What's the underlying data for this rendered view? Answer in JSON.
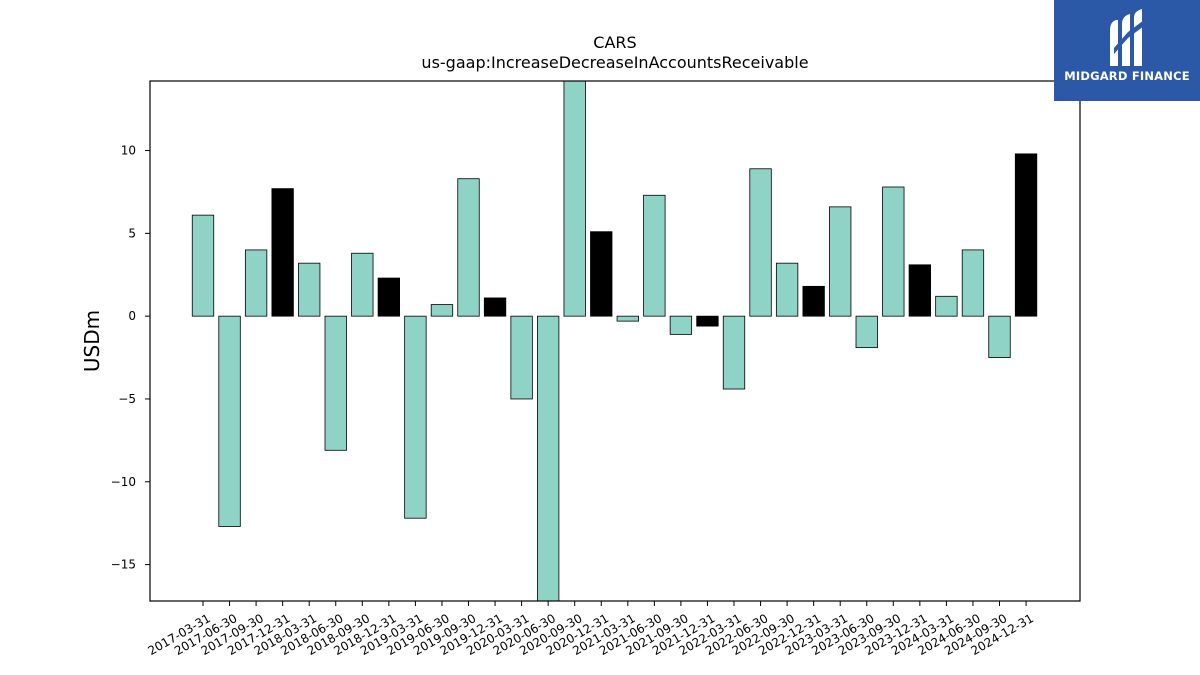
{
  "chart_data": {
    "type": "bar",
    "title": "CARS",
    "subtitle": "us-gaap:IncreaseDecreaseInAccountsReceivable",
    "xlabel": "",
    "ylabel": "USDm",
    "ylim": [
      -17.2,
      14.2
    ],
    "yticks": [
      -15,
      -10,
      -5,
      0,
      5,
      10
    ],
    "ytick_labels": [
      "−15",
      "−10",
      "−5",
      "0",
      "5",
      "10"
    ],
    "grid": false,
    "colors": {
      "quarter": "#8fd3c7",
      "year_end": "#000000",
      "edge": "#000000"
    },
    "categories": [
      "2017-03-31",
      "2017-06-30",
      "2017-09-30",
      "2017-12-31",
      "2018-03-31",
      "2018-06-30",
      "2018-09-30",
      "2018-12-31",
      "2019-03-31",
      "2019-06-30",
      "2019-09-30",
      "2019-12-31",
      "2020-03-31",
      "2020-06-30",
      "2020-09-30",
      "2020-12-31",
      "2021-03-31",
      "2021-06-30",
      "2021-09-30",
      "2021-12-31",
      "2022-03-31",
      "2022-06-30",
      "2022-09-30",
      "2022-12-31",
      "2023-03-31",
      "2023-06-30",
      "2023-09-30",
      "2023-12-31",
      "2024-03-31",
      "2024-06-30",
      "2024-09-30",
      "2024-12-31"
    ],
    "values": [
      6.1,
      -12.7,
      4.0,
      7.7,
      3.2,
      -8.1,
      3.8,
      2.3,
      -12.2,
      0.7,
      8.3,
      1.1,
      -5.0,
      -17.2,
      14.2,
      5.1,
      -0.3,
      7.3,
      -1.1,
      -0.6,
      -4.4,
      8.9,
      3.2,
      1.8,
      6.6,
      -1.9,
      7.8,
      3.1,
      1.2,
      4.0,
      -2.5,
      9.8
    ]
  },
  "brand": {
    "name": "MIDGARD FINANCE",
    "logo_icon": "midgard-m-icon",
    "color": "#2b59a8"
  }
}
